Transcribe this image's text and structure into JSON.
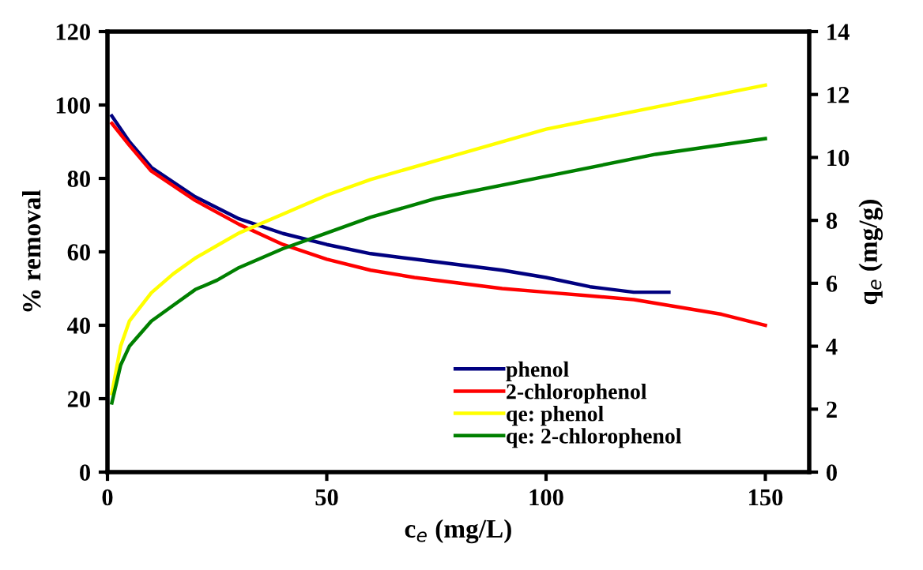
{
  "chart_data": {
    "type": "line",
    "xlabel": "c$_{e}$ (mg/L)",
    "ylabel": "% removal",
    "y2label": "q$_{e}$ (mg/g)",
    "xlim": [
      0,
      160
    ],
    "xticks": [
      0,
      50,
      100,
      150
    ],
    "ylim": [
      0,
      120
    ],
    "yticks": [
      0,
      20,
      40,
      60,
      80,
      100,
      120
    ],
    "y2lim": [
      0,
      14
    ],
    "y2ticks": [
      0,
      2,
      4,
      6,
      8,
      10,
      12,
      14
    ],
    "legend": "bottom right",
    "grid": false,
    "marker": "none",
    "line_style": "solid",
    "series": [
      {
        "name": "phenol",
        "color": "#000080",
        "x": [
          1,
          5,
          10,
          20,
          30,
          40,
          50,
          60,
          70,
          80,
          90,
          100,
          110,
          120,
          128
        ],
        "values": [
          97,
          90,
          83,
          75,
          69,
          65,
          62,
          59.5,
          58,
          56.5,
          55,
          53,
          50.5,
          49,
          49
        ]
      },
      {
        "name": "2-chlorophenol",
        "color": "#ff0000",
        "x": [
          1,
          5,
          10,
          20,
          30,
          40,
          50,
          60,
          70,
          80,
          90,
          100,
          110,
          120,
          130,
          140,
          150
        ],
        "values": [
          95,
          89,
          82,
          74,
          67.5,
          62,
          58,
          55,
          53,
          51.5,
          50,
          49,
          48,
          47,
          45,
          43,
          40
        ]
      },
      {
        "name": "qe: phenol",
        "color": "#ffff00",
        "axis": "y2",
        "x": [
          1,
          3,
          5,
          10,
          15,
          20,
          25,
          30,
          40,
          50,
          60,
          75,
          100,
          125,
          150
        ],
        "values": [
          2.5,
          4,
          4.8,
          5.7,
          6.3,
          6.8,
          7.2,
          7.6,
          8.2,
          8.8,
          9.3,
          9.9,
          10.9,
          11.6,
          12.3
        ]
      },
      {
        "name": "qe: 2-chlorophenol",
        "color": "#008000",
        "axis": "y2",
        "x": [
          1,
          3,
          5,
          10,
          15,
          20,
          25,
          30,
          40,
          50,
          60,
          75,
          100,
          125,
          150
        ],
        "values": [
          2.2,
          3.4,
          4,
          4.8,
          5.3,
          5.8,
          6.1,
          6.5,
          7.1,
          7.6,
          8.1,
          8.7,
          9.4,
          10.1,
          10.6
        ]
      }
    ]
  }
}
